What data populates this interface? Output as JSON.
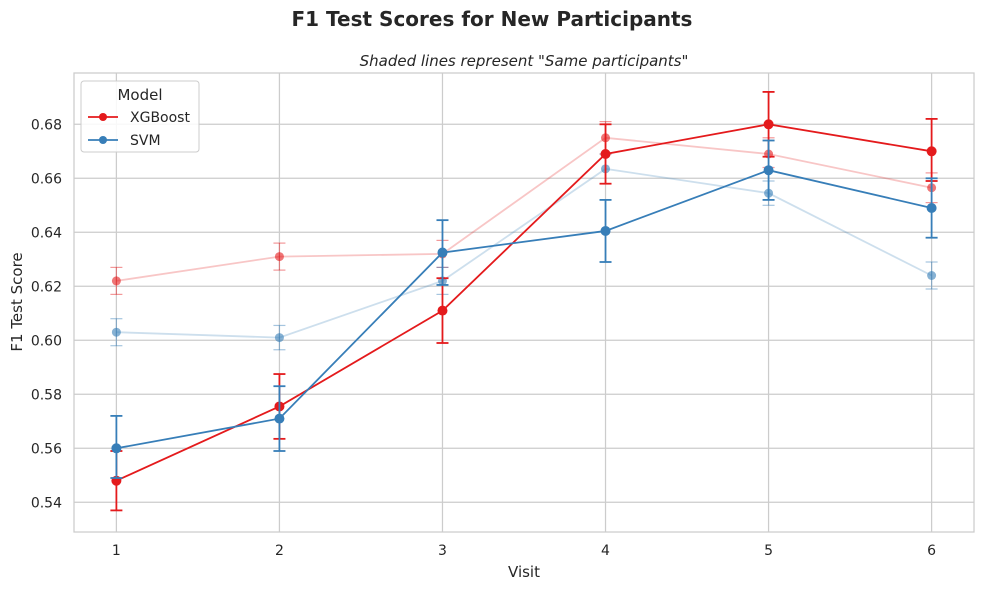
{
  "chart_data": {
    "type": "line",
    "title": "F1 Test Scores for New Participants",
    "subtitle": "Shaded lines represent \"Same participants\"",
    "xlabel": "Visit",
    "ylabel": "F1 Test Score",
    "x": [
      1,
      2,
      3,
      4,
      5,
      6
    ],
    "x_ticks": [
      "1",
      "2",
      "3",
      "4",
      "5",
      "6"
    ],
    "xlim": [
      0.74,
      6.26
    ],
    "ylim": [
      0.529,
      0.699
    ],
    "y_ticks": [
      "0.54",
      "0.56",
      "0.58",
      "0.60",
      "0.62",
      "0.64",
      "0.66",
      "0.68"
    ],
    "grid": true,
    "legend": {
      "title": "Model",
      "placement": "top-left"
    },
    "series": [
      {
        "name": "XGBoost",
        "color": "#e41a1c",
        "group": "new",
        "values": [
          0.548,
          0.5755,
          0.611,
          0.669,
          0.68,
          0.67
        ],
        "err_low": [
          0.537,
          0.5635,
          0.599,
          0.658,
          0.668,
          0.659
        ],
        "err_high": [
          0.559,
          0.5875,
          0.623,
          0.68,
          0.692,
          0.682
        ]
      },
      {
        "name": "SVM",
        "color": "#377eb8",
        "group": "new",
        "values": [
          0.56,
          0.571,
          0.6325,
          0.6405,
          0.663,
          0.649
        ],
        "err_low": [
          0.549,
          0.559,
          0.6205,
          0.629,
          0.652,
          0.638
        ],
        "err_high": [
          0.572,
          0.583,
          0.6445,
          0.652,
          0.674,
          0.66
        ]
      },
      {
        "color": "#e41a1c",
        "group": "same",
        "values": [
          0.622,
          0.631,
          0.632,
          0.675,
          0.669,
          0.6565
        ],
        "err_low": [
          0.617,
          0.626,
          0.627,
          0.669,
          0.664,
          0.651
        ],
        "err_high": [
          0.627,
          0.636,
          0.637,
          0.681,
          0.675,
          0.662
        ]
      },
      {
        "color": "#377eb8",
        "group": "same",
        "values": [
          0.603,
          0.601,
          0.622,
          0.6635,
          0.6545,
          0.624
        ],
        "err_low": [
          0.598,
          0.5965,
          0.617,
          0.658,
          0.65,
          0.619
        ],
        "err_high": [
          0.608,
          0.6055,
          0.627,
          0.669,
          0.659,
          0.629
        ]
      }
    ]
  }
}
